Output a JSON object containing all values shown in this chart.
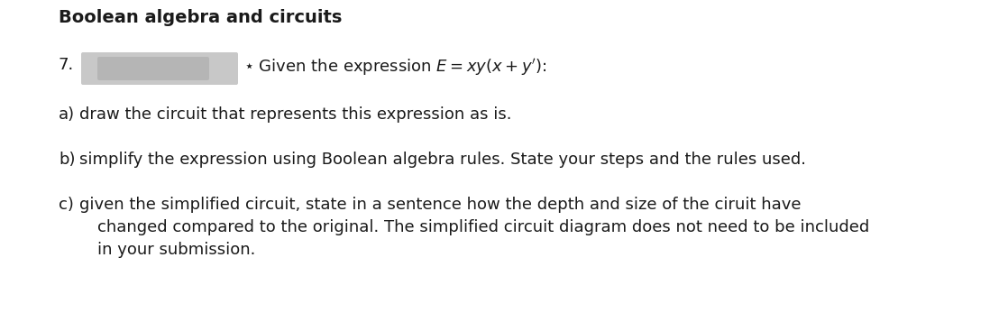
{
  "title": "Boolean algebra and circuits",
  "title_fontsize": 14,
  "background_color": "#ffffff",
  "text_color": "#1a1a1a",
  "body_fontsize": 13,
  "redacted_box": {
    "color": "#c8c8c8",
    "inner_color": "#b5b5b5"
  },
  "lines": [
    {
      "label": "a)",
      "text": " draw the circuit that represents this expression as is."
    },
    {
      "label": "b)",
      "text": " simplify the expression using Boolean algebra rules. State your steps and the rules used."
    },
    {
      "label": "c)",
      "text": " given the simplified circuit, state in a sentence how the depth and size of the ciruit have"
    },
    {
      "label": "",
      "text": "changed compared to the original. The simplified circuit diagram does not need to be included"
    },
    {
      "label": "",
      "text": "in your submission."
    }
  ]
}
